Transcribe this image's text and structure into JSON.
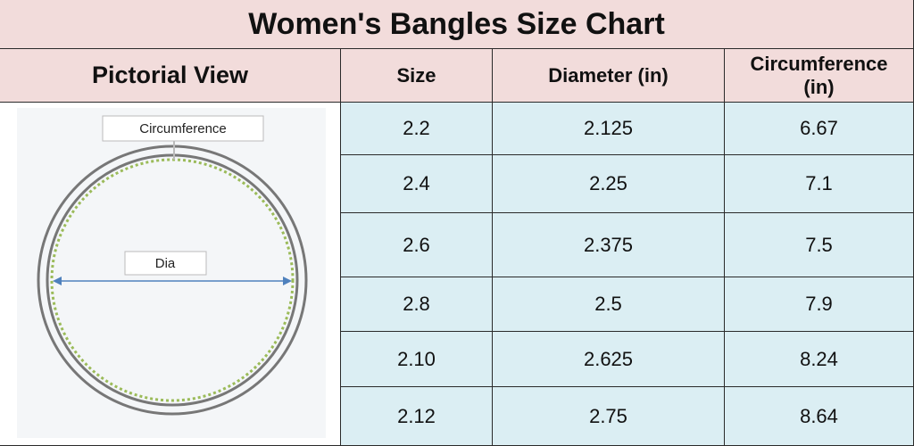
{
  "header": {
    "title": "Women's Bangles Size Chart"
  },
  "table": {
    "columns": [
      "Pictorial View",
      "Size",
      "Diameter (in)",
      "Circumference (in)"
    ],
    "rows": [
      [
        "2.2",
        "2.125",
        "6.67"
      ],
      [
        "2.4",
        "2.25",
        "7.1"
      ],
      [
        "2.6",
        "2.375",
        "7.5"
      ],
      [
        "2.8",
        "2.5",
        "7.9"
      ],
      [
        "2.10",
        "2.625",
        "8.24"
      ],
      [
        "2.12",
        "2.75",
        "8.64"
      ]
    ]
  },
  "diagram": {
    "circumference_label": "Circumference",
    "diameter_label": "Dia"
  }
}
